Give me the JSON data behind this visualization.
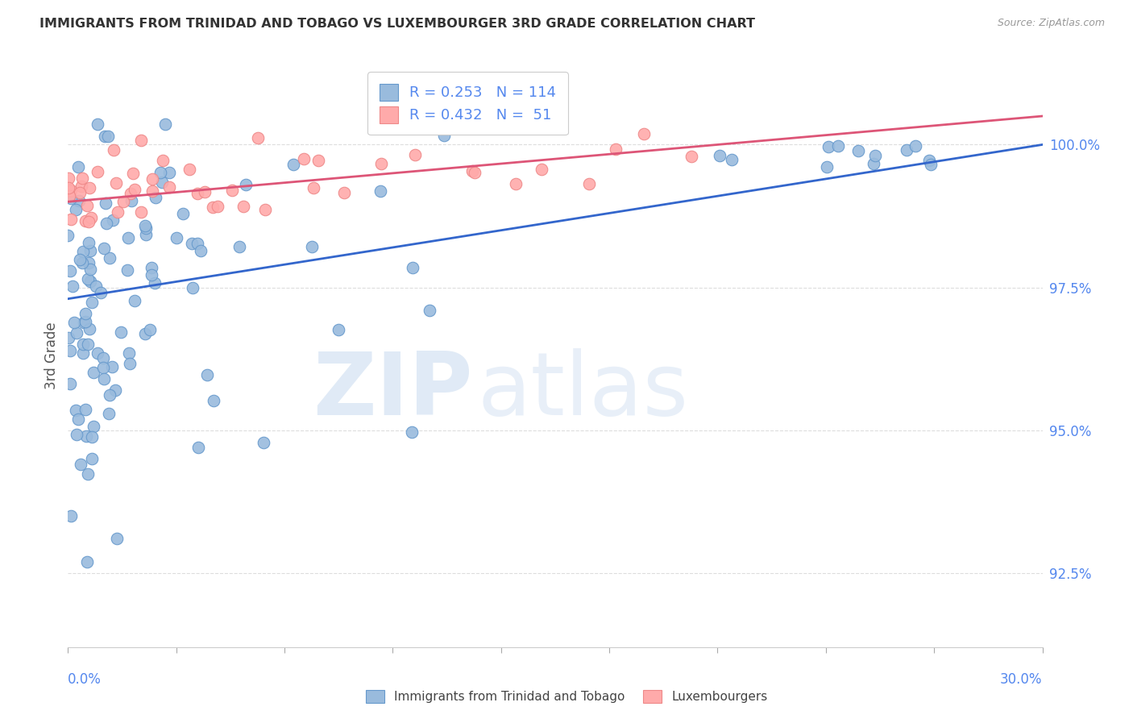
{
  "title": "IMMIGRANTS FROM TRINIDAD AND TOBAGO VS LUXEMBOURGER 3RD GRADE CORRELATION CHART",
  "source": "Source: ZipAtlas.com",
  "ylabel": "3rd Grade",
  "y_ticks": [
    92.5,
    95.0,
    97.5,
    100.0
  ],
  "y_tick_labels": [
    "92.5%",
    "95.0%",
    "97.5%",
    "100.0%"
  ],
  "xlim": [
    0.0,
    30.0
  ],
  "ylim": [
    91.2,
    101.4
  ],
  "blue_R": 0.253,
  "blue_N": 114,
  "pink_R": 0.432,
  "pink_N": 51,
  "blue_color": "#99BBDD",
  "pink_color": "#FFAAAA",
  "blue_edge_color": "#6699CC",
  "pink_edge_color": "#EE8888",
  "blue_line_color": "#3366CC",
  "pink_line_color": "#DD5577",
  "legend_label_blue": "Immigrants from Trinidad and Tobago",
  "legend_label_pink": "Luxembourgers",
  "watermark_zip": "ZIP",
  "watermark_atlas": "atlas",
  "background_color": "#FFFFFF",
  "grid_color": "#DDDDDD",
  "tick_color": "#AAAAAA",
  "label_color": "#5588EE",
  "title_color": "#333333",
  "source_color": "#999999",
  "ylabel_color": "#555555"
}
